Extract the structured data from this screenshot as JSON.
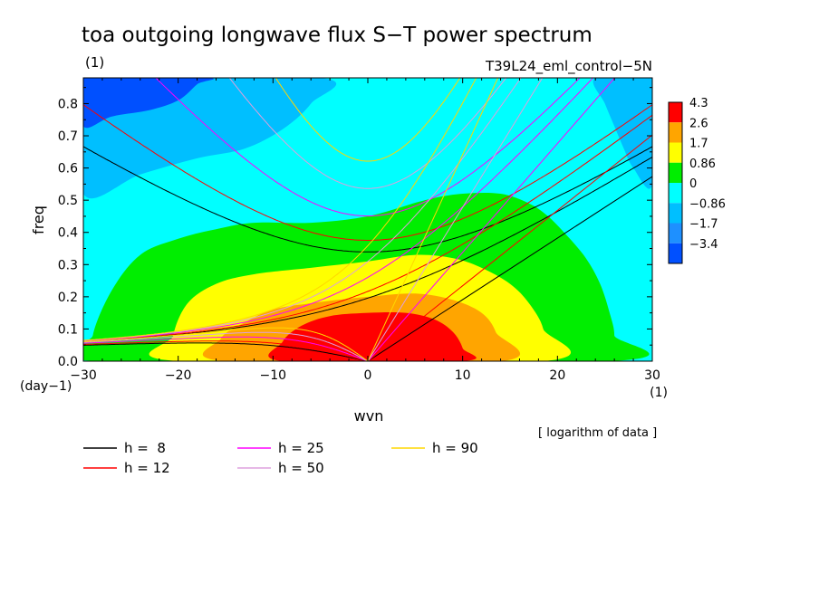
{
  "chart_data": {
    "type": "heatmap",
    "title": "toa outgoing longwave flux S−T power spectrum",
    "title_unit": "(1)",
    "subtitle": "T39L24_eml_control−5N",
    "xlabel": "wvn",
    "ylabel": "freq",
    "x_unit": "(1)",
    "y_unit": "(day−1)",
    "xlim": [
      -30,
      30
    ],
    "ylim": [
      0,
      0.88
    ],
    "x_ticks": [
      -30,
      -20,
      -10,
      0,
      10,
      20,
      30
    ],
    "y_ticks": [
      0.0,
      0.1,
      0.2,
      0.3,
      0.4,
      0.5,
      0.6,
      0.7,
      0.8
    ],
    "x_tick_labels": [
      "−30",
      "−20",
      "−10",
      "0",
      "10",
      "20",
      "30"
    ],
    "y_tick_labels": [
      "0.0",
      "0.1",
      "0.2",
      "0.3",
      "0.4",
      "0.5",
      "0.6",
      "0.7",
      "0.8"
    ],
    "note": "[ logarithm of data ]",
    "colorbar": {
      "levels": [
        "4.3",
        "2.6",
        "1.7",
        "0.86",
        "0",
        "−0.86",
        "−1.7",
        "−3.4"
      ],
      "colors": [
        "#ff0000",
        "#ffa500",
        "#ffff00",
        "#00ee00",
        "#00ffff",
        "#00bfff",
        "#1e90ff",
        "#0050ff"
      ]
    },
    "dispersion_curves": [
      {
        "label": "h =  8",
        "h": 8,
        "color": "#000000"
      },
      {
        "label": "h = 12",
        "h": 12,
        "color": "#ff0000"
      },
      {
        "label": "h = 25",
        "h": 25,
        "color": "#ff00ff"
      },
      {
        "label": "h = 50",
        "h": 50,
        "color": "#dda0dd"
      },
      {
        "label": "h = 90",
        "h": 90,
        "color": "#ffd700"
      }
    ],
    "regions": [
      {
        "level": "<-0.86",
        "color": "#00bfff",
        "pts": [
          [
            -30,
            0.88
          ],
          [
            -30,
            0.52
          ],
          [
            -24,
            0.58
          ],
          [
            -18,
            0.63
          ],
          [
            -13,
            0.66
          ],
          [
            -9,
            0.72
          ],
          [
            -6,
            0.8
          ],
          [
            -5,
            0.88
          ]
        ]
      },
      {
        "level": "<-1.7",
        "color": "#0050ff",
        "pts": [
          [
            -30,
            0.88
          ],
          [
            -30,
            0.73
          ],
          [
            -27,
            0.76
          ],
          [
            -23,
            0.78
          ],
          [
            -20,
            0.81
          ],
          [
            -18,
            0.86
          ],
          [
            -17,
            0.88
          ]
        ]
      },
      {
        "level": "<-0.86",
        "color": "#00bfff",
        "pts": [
          [
            30,
            0.88
          ],
          [
            30,
            0.55
          ],
          [
            28,
            0.6
          ],
          [
            27,
            0.66
          ],
          [
            26,
            0.73
          ],
          [
            25,
            0.8
          ],
          [
            24,
            0.88
          ]
        ]
      },
      {
        "level": "0 to 0.86",
        "color": "#00ee00",
        "pts": [
          [
            -28.5,
            0.0
          ],
          [
            -29,
            0.08
          ],
          [
            -27,
            0.22
          ],
          [
            -24,
            0.33
          ],
          [
            -20,
            0.38
          ],
          [
            -16,
            0.41
          ],
          [
            -12,
            0.43
          ],
          [
            -6,
            0.43
          ],
          [
            0,
            0.45
          ],
          [
            6,
            0.5
          ],
          [
            10,
            0.52
          ],
          [
            14,
            0.52
          ],
          [
            17,
            0.49
          ],
          [
            19,
            0.45
          ],
          [
            21,
            0.39
          ],
          [
            23,
            0.32
          ],
          [
            24.5,
            0.24
          ],
          [
            25.5,
            0.15
          ],
          [
            26,
            0.08
          ],
          [
            25.5,
            0.0
          ]
        ]
      },
      {
        "level": "0.86 to 1.7",
        "color": "#ffff00",
        "pts": [
          [
            -20,
            0.0
          ],
          [
            -20.5,
            0.08
          ],
          [
            -19,
            0.18
          ],
          [
            -16,
            0.24
          ],
          [
            -12,
            0.27
          ],
          [
            -6,
            0.29
          ],
          [
            0,
            0.31
          ],
          [
            5,
            0.33
          ],
          [
            9,
            0.32
          ],
          [
            12,
            0.29
          ],
          [
            15,
            0.24
          ],
          [
            17,
            0.18
          ],
          [
            18.5,
            0.1
          ],
          [
            18.5,
            0.0
          ]
        ]
      },
      {
        "level": "1.7 to 2.6",
        "color": "#ffa500",
        "pts": [
          [
            -15,
            0.0
          ],
          [
            -15.5,
            0.07
          ],
          [
            -13,
            0.12
          ],
          [
            -10,
            0.16
          ],
          [
            -6,
            0.18
          ],
          [
            0,
            0.2
          ],
          [
            5,
            0.21
          ],
          [
            9,
            0.19
          ],
          [
            12,
            0.15
          ],
          [
            13.5,
            0.09
          ],
          [
            14,
            0.0
          ]
        ]
      },
      {
        "level": "2.6 to 4.3",
        "color": "#ff0000",
        "pts": [
          [
            -9,
            0.0
          ],
          [
            -9,
            0.06
          ],
          [
            -7,
            0.11
          ],
          [
            -4,
            0.14
          ],
          [
            0,
            0.15
          ],
          [
            4,
            0.15
          ],
          [
            7,
            0.13
          ],
          [
            9,
            0.09
          ],
          [
            10,
            0.04
          ],
          [
            10,
            0.0
          ]
        ]
      }
    ]
  }
}
